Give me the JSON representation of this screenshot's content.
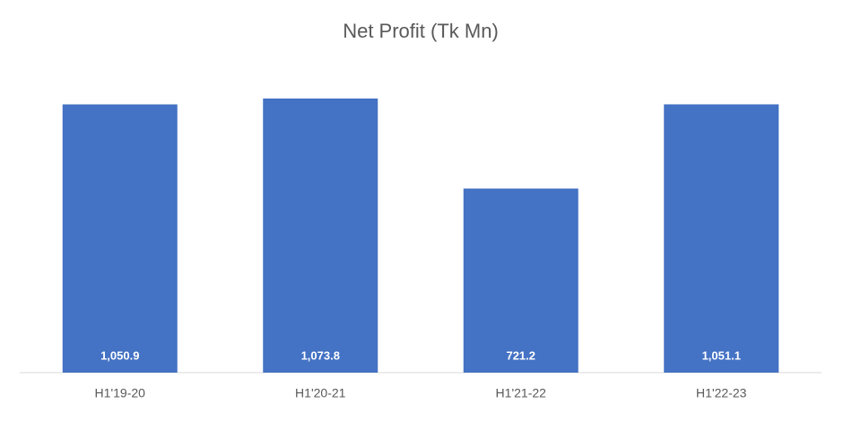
{
  "chart_data": {
    "type": "bar",
    "title": "Net Profit (Tk Mn)",
    "categories": [
      "H1'19-20",
      "H1'20-21",
      "H1'21-22",
      "H1'22-23"
    ],
    "values": [
      1050.9,
      1073.8,
      721.2,
      1051.1
    ],
    "value_labels": [
      "1,050.9",
      "1,073.8",
      "721.2",
      "1,051.1"
    ],
    "color": "#4472c4"
  }
}
